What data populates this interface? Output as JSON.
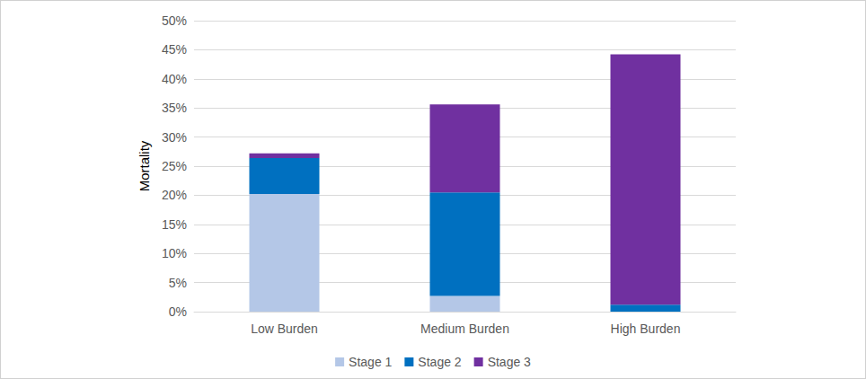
{
  "chart_data": {
    "type": "bar",
    "stacked": true,
    "y_label": "Mortality",
    "categories": [
      "Low Burden",
      "Medium Burden",
      "High Burden"
    ],
    "series": [
      {
        "name": "Stage 1",
        "color": "#b4c7e7",
        "values": [
          20.2,
          2.7,
          0
        ]
      },
      {
        "name": "Stage 2",
        "color": "#0070c0",
        "values": [
          6.2,
          17.8,
          1.2
        ]
      },
      {
        "name": "Stage 3",
        "color": "#7030a0",
        "values": [
          0.8,
          15.1,
          43.0
        ]
      }
    ],
    "ylim": [
      0,
      50
    ],
    "yticks": [
      {
        "value": 0,
        "label": "0%"
      },
      {
        "value": 5,
        "label": "5%"
      },
      {
        "value": 10,
        "label": "10%"
      },
      {
        "value": 15,
        "label": "15%"
      },
      {
        "value": 20,
        "label": "20%"
      },
      {
        "value": 25,
        "label": "25%"
      },
      {
        "value": 30,
        "label": "30%"
      },
      {
        "value": 35,
        "label": "35%"
      },
      {
        "value": 40,
        "label": "40%"
      },
      {
        "value": 45,
        "label": "45%"
      },
      {
        "value": 50,
        "label": "50%"
      }
    ],
    "grid": true,
    "legend": "bottom"
  }
}
